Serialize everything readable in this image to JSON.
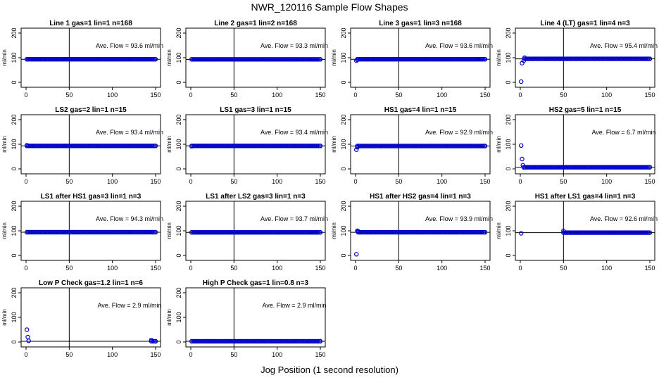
{
  "page": {
    "title": "NWR_120116  Sample Flow Shapes",
    "xlabel": "Jog Position (1 second resolution)"
  },
  "chart_data": [
    {
      "type": "scatter",
      "title": "Line 1 gas=1 lin=1 n=168",
      "annotation": "Ave. Flow = 93.6  ml/min",
      "ylabel": "ml/min",
      "xlim": [
        0,
        150
      ],
      "ylim": [
        0,
        200
      ],
      "xticks": [
        0,
        50,
        100,
        150
      ],
      "yticks": [
        0,
        100,
        200
      ],
      "vline": 50,
      "hline": 93.6,
      "series": [
        {
          "x": [
            1,
            150
          ],
          "y": [
            93.6,
            93.6
          ]
        }
      ]
    },
    {
      "type": "scatter",
      "title": "Line 2 gas=1 lin=2 n=168",
      "annotation": "Ave. Flow = 93.3  ml/min",
      "ylabel": "ml/min",
      "xlim": [
        0,
        150
      ],
      "ylim": [
        0,
        200
      ],
      "xticks": [
        0,
        50,
        100,
        150
      ],
      "yticks": [
        0,
        100,
        200
      ],
      "vline": 50,
      "hline": 93.3,
      "series": [
        {
          "x": [
            1,
            150
          ],
          "y": [
            93.3,
            93.3
          ]
        }
      ]
    },
    {
      "type": "scatter",
      "title": "Line 3 gas=1 lin=3 n=168",
      "annotation": "Ave. Flow = 93.6  ml/min",
      "ylabel": "ml/min",
      "xlim": [
        0,
        150
      ],
      "ylim": [
        0,
        200
      ],
      "xticks": [
        0,
        50,
        100,
        150
      ],
      "yticks": [
        0,
        100,
        200
      ],
      "vline": 50,
      "hline": 93.6,
      "series": [
        {
          "x": [
            1,
            2,
            150
          ],
          "y": [
            88,
            92,
            93.6
          ]
        }
      ]
    },
    {
      "type": "scatter",
      "title": "Line 4 (LT) gas=1 lin=4 n=3",
      "annotation": "Ave. Flow = 95.4  ml/min",
      "ylabel": "ml/min",
      "xlim": [
        0,
        150
      ],
      "ylim": [
        0,
        200
      ],
      "xticks": [
        0,
        50,
        100,
        150
      ],
      "yticks": [
        0,
        100,
        200
      ],
      "vline": 50,
      "hline": 95.4,
      "series": [
        {
          "x": [
            1,
            2,
            4,
            5,
            150
          ],
          "y": [
            3,
            78,
            88,
            100,
            95.4
          ]
        }
      ]
    },
    {
      "type": "scatter",
      "title": "LS2 gas=2 lin=1 n=15",
      "annotation": "Ave. Flow = 93.4  ml/min",
      "ylabel": "ml/min",
      "xlim": [
        0,
        150
      ],
      "ylim": [
        0,
        200
      ],
      "xticks": [
        0,
        50,
        100,
        150
      ],
      "yticks": [
        0,
        100,
        200
      ],
      "vline": 50,
      "hline": 93.4,
      "series": [
        {
          "x": [
            1,
            150
          ],
          "y": [
            96,
            93.4
          ]
        }
      ]
    },
    {
      "type": "scatter",
      "title": "LS1 gas=3 lin=1 n=15",
      "annotation": "Ave. Flow = 93.4  ml/min",
      "ylabel": "ml/min",
      "xlim": [
        0,
        150
      ],
      "ylim": [
        0,
        200
      ],
      "xticks": [
        0,
        50,
        100,
        150
      ],
      "yticks": [
        0,
        100,
        200
      ],
      "vline": 50,
      "hline": 93.4,
      "series": [
        {
          "x": [
            1,
            150
          ],
          "y": [
            92,
            93.4
          ]
        }
      ]
    },
    {
      "type": "scatter",
      "title": "HS1 gas=4 lin=1 n=15",
      "annotation": "Ave. Flow = 92.9  ml/min",
      "ylabel": "ml/min",
      "xlim": [
        0,
        150
      ],
      "ylim": [
        0,
        200
      ],
      "xticks": [
        0,
        50,
        100,
        150
      ],
      "yticks": [
        0,
        100,
        200
      ],
      "vline": 50,
      "hline": 92.9,
      "series": [
        {
          "x": [
            1,
            2,
            150
          ],
          "y": [
            78,
            88,
            92.9
          ]
        }
      ]
    },
    {
      "type": "scatter",
      "title": "HS2 gas=5 lin=1 n=15",
      "annotation": "Ave. Flow = 6.7  ml/min",
      "ylabel": "ml/min",
      "xlim": [
        0,
        150
      ],
      "ylim": [
        0,
        200
      ],
      "xticks": [
        0,
        50,
        100,
        150
      ],
      "yticks": [
        0,
        100,
        200
      ],
      "vline": 50,
      "hline": 6.7,
      "series": [
        {
          "x": [
            1,
            2,
            3,
            4,
            150
          ],
          "y": [
            95,
            40,
            15,
            6,
            6.7
          ]
        }
      ]
    },
    {
      "type": "scatter",
      "title": "LS1 after HS1 gas=3 lin=1 n=3",
      "annotation": "Ave. Flow = 94.3  ml/min",
      "ylabel": "ml/min",
      "xlim": [
        0,
        150
      ],
      "ylim": [
        0,
        200
      ],
      "xticks": [
        0,
        50,
        100,
        150
      ],
      "yticks": [
        0,
        100,
        200
      ],
      "vline": 50,
      "hline": 94.3,
      "series": [
        {
          "x": [
            1,
            150
          ],
          "y": [
            94.3,
            94.3
          ]
        }
      ]
    },
    {
      "type": "scatter",
      "title": "LS1 after LS2 gas=3 lin=1 n=3",
      "annotation": "Ave. Flow = 93.7  ml/min",
      "ylabel": "ml/min",
      "xlim": [
        0,
        150
      ],
      "ylim": [
        0,
        200
      ],
      "xticks": [
        0,
        50,
        100,
        150
      ],
      "yticks": [
        0,
        100,
        200
      ],
      "vline": 50,
      "hline": 93.7,
      "series": [
        {
          "x": [
            1,
            150
          ],
          "y": [
            93.7,
            93.7
          ]
        }
      ]
    },
    {
      "type": "scatter",
      "title": "HS1 after HS2 gas=4 lin=1 n=3",
      "annotation": "Ave. Flow = 93.9  ml/min",
      "ylabel": "ml/min",
      "xlim": [
        0,
        150
      ],
      "ylim": [
        0,
        200
      ],
      "xticks": [
        0,
        50,
        100,
        150
      ],
      "yticks": [
        0,
        100,
        200
      ],
      "vline": 50,
      "hline": 93.9,
      "series": [
        {
          "x": [
            1,
            2,
            3,
            150
          ],
          "y": [
            5,
            100,
            98,
            93.9
          ]
        }
      ]
    },
    {
      "type": "scatter",
      "title": "HS1 after LS1 gas=4 lin=1 n=3",
      "annotation": "Ave. Flow = 92.6  ml/min",
      "ylabel": "ml/min",
      "xlim": [
        0,
        150
      ],
      "ylim": [
        0,
        200
      ],
      "xticks": [
        0,
        50,
        100,
        150
      ],
      "yticks": [
        0,
        100,
        200
      ],
      "vline": 50,
      "hline": 92.6,
      "series": [
        {
          "x": [
            1,
            50,
            150
          ],
          "y": [
            90,
            100,
            92.6
          ]
        }
      ]
    },
    {
      "type": "scatter",
      "title": "Low P Check gas=1.2 lin=1 n=6",
      "annotation": "Ave. Flow = 2.9  ml/min",
      "ylabel": "ml/min",
      "xlim": [
        0,
        150
      ],
      "ylim": [
        0,
        200
      ],
      "xticks": [
        0,
        50,
        100,
        150
      ],
      "yticks": [
        0,
        100,
        200
      ],
      "vline": 50,
      "hline": 2.9,
      "series": [
        {
          "x": [
            1,
            2,
            3,
            145,
            150
          ],
          "y": [
            50,
            20,
            5,
            8,
            2.9
          ]
        }
      ]
    },
    {
      "type": "scatter",
      "title": "High P Check gas=1 lin=0.8 n=3",
      "annotation": "Ave. Flow = 2.9  ml/min",
      "ylabel": "ml/min",
      "xlim": [
        0,
        150
      ],
      "ylim": [
        0,
        200
      ],
      "xticks": [
        0,
        50,
        100,
        150
      ],
      "yticks": [
        0,
        100,
        200
      ],
      "vline": 50,
      "hline": 2.9,
      "series": [
        {
          "x": [
            1,
            150
          ],
          "y": [
            2.9,
            2.9
          ]
        }
      ]
    }
  ],
  "colors": {
    "points": "#0000cc",
    "axes": "#000000"
  }
}
